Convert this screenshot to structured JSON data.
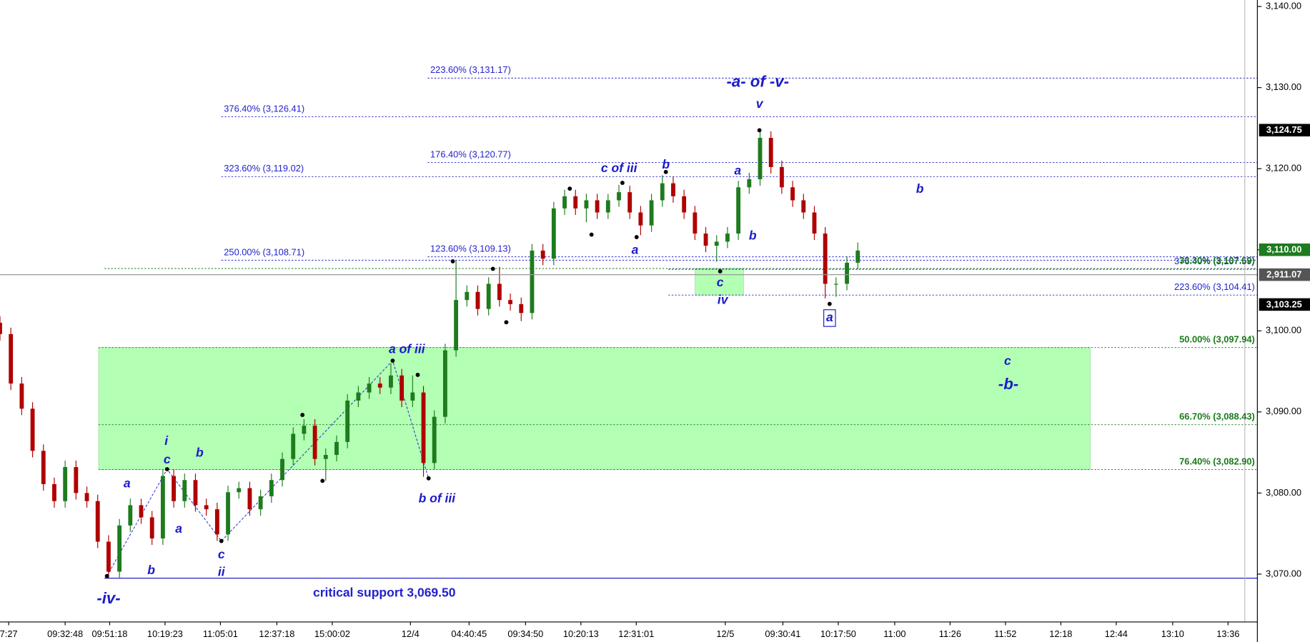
{
  "chart_data": {
    "type": "candlestick",
    "open": [
      3101.0,
      3099.6,
      3093.5,
      3090.4,
      3085.2,
      3081.1,
      3079.0,
      3083.2,
      3080.0,
      3079.0,
      3074.0,
      3070.3,
      3076.0,
      3078.5,
      3077.0,
      3074.4,
      3082.1,
      3079.0,
      3081.6,
      3078.5,
      3078.0,
      3074.9,
      3080.1,
      3080.6,
      3078.0,
      3079.6,
      3081.6,
      3084.2,
      3087.3,
      3088.3,
      3084.2,
      3084.7,
      3086.3,
      3091.4,
      3092.4,
      3093.5,
      3093.0,
      3094.5,
      3091.4,
      3092.4,
      3083.7,
      3089.4,
      3097.6,
      3103.8,
      3104.8,
      3102.7,
      3105.8,
      3103.8,
      3103.3,
      3102.2,
      3109.9,
      3108.9,
      3115.1,
      3116.6,
      3115.1,
      3116.1,
      3114.6,
      3116.1,
      3117.1,
      3114.6,
      3113.0,
      3116.1,
      3118.2,
      3116.6,
      3114.6,
      3112.0,
      3110.5,
      3111.0,
      3112.0,
      3117.7,
      3118.7,
      3123.8,
      3120.2,
      3117.7,
      3116.1,
      3114.6,
      3112.0,
      3105.8,
      3105.8,
      3108.4
    ],
    "high": [
      3101.8,
      3100.4,
      3094.3,
      3091.2,
      3086.0,
      3081.9,
      3084.0,
      3084.0,
      3080.8,
      3079.8,
      3074.8,
      3076.8,
      3079.3,
      3079.3,
      3077.8,
      3082.9,
      3082.9,
      3082.4,
      3082.4,
      3079.3,
      3078.8,
      3080.9,
      3081.4,
      3081.4,
      3080.4,
      3082.4,
      3085.0,
      3088.1,
      3089.1,
      3089.1,
      3085.5,
      3087.1,
      3092.2,
      3093.2,
      3094.3,
      3094.3,
      3096.0,
      3095.3,
      3094.5,
      3093.2,
      3090.2,
      3098.4,
      3108.7,
      3105.6,
      3105.6,
      3106.6,
      3107.9,
      3104.6,
      3104.1,
      3110.7,
      3110.7,
      3115.9,
      3117.4,
      3117.4,
      3116.9,
      3116.9,
      3116.9,
      3118.0,
      3117.9,
      3115.4,
      3116.9,
      3119.2,
      3119.0,
      3117.4,
      3115.4,
      3112.8,
      3111.8,
      3112.8,
      3118.5,
      3119.5,
      3124.75,
      3124.6,
      3121.0,
      3118.5,
      3116.9,
      3115.4,
      3112.8,
      3106.6,
      3109.2,
      3110.9
    ],
    "low": [
      3098.8,
      3092.7,
      3089.6,
      3084.4,
      3080.3,
      3078.2,
      3078.2,
      3079.2,
      3078.2,
      3073.2,
      3069.5,
      3069.5,
      3075.2,
      3076.2,
      3073.6,
      3073.6,
      3078.2,
      3078.2,
      3077.7,
      3077.2,
      3074.1,
      3074.1,
      3079.3,
      3077.2,
      3077.2,
      3078.8,
      3080.8,
      3083.4,
      3086.5,
      3083.4,
      3081.5,
      3083.9,
      3085.5,
      3090.6,
      3091.6,
      3092.2,
      3092.2,
      3090.6,
      3090.6,
      3082.0,
      3082.9,
      3088.6,
      3096.8,
      3103.0,
      3101.9,
      3101.9,
      3103.0,
      3102.5,
      3101.2,
      3101.4,
      3108.1,
      3108.1,
      3114.3,
      3114.3,
      3113.4,
      3113.8,
      3113.8,
      3115.3,
      3113.8,
      3111.8,
      3112.2,
      3115.3,
      3115.8,
      3113.8,
      3111.2,
      3109.7,
      3108.5,
      3110.2,
      3111.2,
      3116.9,
      3117.9,
      3119.4,
      3116.9,
      3115.3,
      3113.8,
      3111.2,
      3104.0,
      3104.2,
      3105.0,
      3107.6
    ],
    "close": [
      3099.6,
      3093.5,
      3090.4,
      3085.2,
      3081.1,
      3079.0,
      3083.2,
      3080.0,
      3079.0,
      3074.0,
      3070.3,
      3076.0,
      3078.5,
      3077.0,
      3074.4,
      3082.1,
      3079.0,
      3081.6,
      3078.5,
      3078.0,
      3074.9,
      3080.1,
      3080.6,
      3078.0,
      3079.6,
      3081.6,
      3084.2,
      3087.3,
      3088.3,
      3084.2,
      3084.7,
      3086.3,
      3091.4,
      3092.4,
      3093.5,
      3093.0,
      3094.5,
      3091.4,
      3092.4,
      3083.7,
      3089.4,
      3097.6,
      3103.8,
      3104.8,
      3102.7,
      3105.8,
      3103.8,
      3103.3,
      3102.2,
      3109.9,
      3108.9,
      3115.1,
      3116.6,
      3115.1,
      3116.1,
      3114.6,
      3116.1,
      3117.1,
      3114.6,
      3113.0,
      3116.1,
      3118.2,
      3116.6,
      3114.6,
      3112.0,
      3110.5,
      3111.0,
      3112.0,
      3117.7,
      3118.7,
      3123.8,
      3120.2,
      3117.7,
      3116.1,
      3114.6,
      3112.0,
      3105.8,
      3105.8,
      3108.4,
      3109.9
    ],
    "up_color": "#1e7b1e",
    "down_color": "#b00000",
    "xlim": [
      0,
      115.8
    ],
    "xticks": [
      {
        "value": 0.8,
        "label": "7:27"
      },
      {
        "value": 6,
        "label": "09:32:48"
      },
      {
        "value": 10.1,
        "label": "09:51:18"
      },
      {
        "value": 15.2,
        "label": "10:19:23"
      },
      {
        "value": 20.3,
        "label": "11:05:01"
      },
      {
        "value": 25.5,
        "label": "12:37:18"
      },
      {
        "value": 30.6,
        "label": "15:00:02"
      },
      {
        "value": 37.8,
        "label": "12/4"
      },
      {
        "value": 43.2,
        "label": "04:40:45"
      },
      {
        "value": 48.4,
        "label": "09:34:50"
      },
      {
        "value": 53.5,
        "label": "10:20:13"
      },
      {
        "value": 58.6,
        "label": "12:31:01"
      },
      {
        "value": 66.8,
        "label": "12/5"
      },
      {
        "value": 72.1,
        "label": "09:30:41"
      },
      {
        "value": 77.2,
        "label": "10:17:50"
      },
      {
        "value": 82.4,
        "label": "11:00"
      },
      {
        "value": 87.5,
        "label": "11:26"
      },
      {
        "value": 92.6,
        "label": "11:52"
      },
      {
        "value": 97.7,
        "label": "12:18"
      },
      {
        "value": 102.8,
        "label": "12:44"
      },
      {
        "value": 108,
        "label": "13:10"
      },
      {
        "value": 113.1,
        "label": "13:36"
      }
    ],
    "ylim": [
      3064.1,
      3140.8
    ],
    "yticks": [
      {
        "value": 3070,
        "label": "3,070.00"
      },
      {
        "value": 3080,
        "label": "3,080.00"
      },
      {
        "value": 3090,
        "label": "3,090.00"
      },
      {
        "value": 3100,
        "label": "3,100.00"
      },
      {
        "value": 3110,
        "label": "3,110.00"
      },
      {
        "value": 3120,
        "label": "3,120.00"
      },
      {
        "value": 3130,
        "label": "3,130.00"
      },
      {
        "value": 3140,
        "label": "3,140.00"
      }
    ],
    "levels": [
      {
        "label": "223.60% (3,131.17)",
        "value": 3131.17,
        "color": "#2222cc"
      },
      {
        "label": "376.40% (3,126.41)",
        "value": 3126.41,
        "color": "#2222cc"
      },
      {
        "label": "176.40% (3,120.77)",
        "value": 3120.77,
        "color": "#2222cc"
      },
      {
        "label": "323.60% (3,119.02)",
        "value": 3119.02,
        "color": "#2222cc"
      },
      {
        "label": "123.60% (3,109.13)",
        "value": 3109.13,
        "color": "#2222cc"
      },
      {
        "label": "250.00% (3,108.71)",
        "value": 3108.71,
        "color": "#2222cc"
      },
      {
        "label": "376.40% (3,107.59)",
        "value": 3107.59,
        "color": "#2222cc"
      },
      {
        "label": "33.30% (3,107.69)",
        "value": 3107.69,
        "color": "#1a7a1a"
      },
      {
        "label": "223.60% (3,104.41)",
        "value": 3104.41,
        "color": "#2222cc"
      },
      {
        "label": "50.00% (3,097.94)",
        "value": 3097.94,
        "color": "#1a7a1a"
      },
      {
        "label": "66.70% (3,088.43)",
        "value": 3088.43,
        "color": "#1a7a1a"
      },
      {
        "label": "76.40% (3,082.90)",
        "value": 3082.9,
        "color": "#1a7a1a"
      }
    ],
    "support": {
      "label": "critical support 3,069.50",
      "value": 3069.5,
      "color": "#2222cc"
    },
    "zones": [
      {
        "low": 3082.9,
        "high": 3097.94,
        "color": "#b3ffb3"
      },
      {
        "low": 3104.41,
        "high": 3107.69,
        "color": "#b3ffb3"
      }
    ],
    "price_badges": [
      {
        "label": "3,124.75",
        "value": 3124.75,
        "color": "#000000"
      },
      {
        "label": "3,110.00",
        "value": 3110,
        "color": "#1e7b1e"
      },
      {
        "label": "3,103.25",
        "value": 3103.25,
        "color": "#000000"
      }
    ],
    "other_badge": "2,911.07",
    "wave_labels": [
      "-iv-",
      "a",
      "b",
      "i",
      "c",
      "b",
      "a",
      "c",
      "ii",
      "a of iii",
      "b of iii",
      "c of iii",
      "b",
      "a",
      "c",
      "iv",
      "a",
      "b",
      "v",
      "-a- of -v-",
      "a",
      "b",
      "c",
      "-b-"
    ]
  }
}
